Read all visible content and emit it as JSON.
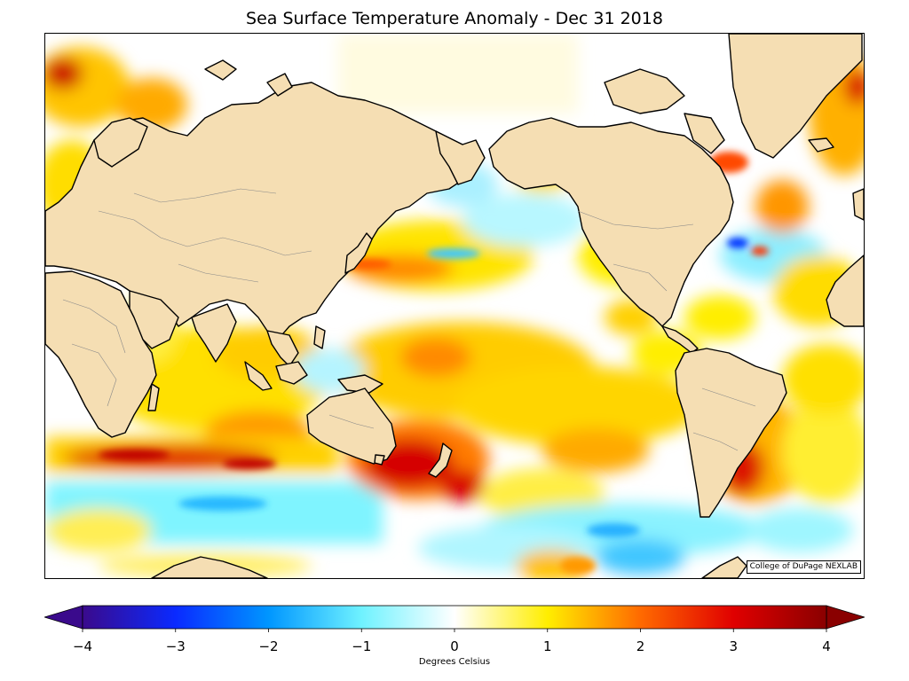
{
  "title": "Sea Surface Temperature Anomaly - Dec 31 2018",
  "credit": "College of DuPage NEXLAB",
  "colorbar": {
    "label": "Degrees Celsius",
    "min": -4,
    "max": 4,
    "ticks": [
      {
        "value": -4,
        "label": "−4"
      },
      {
        "value": -3,
        "label": "−3"
      },
      {
        "value": -2,
        "label": "−2"
      },
      {
        "value": -1,
        "label": "−1"
      },
      {
        "value": 0,
        "label": "0"
      },
      {
        "value": 1,
        "label": "1"
      },
      {
        "value": 2,
        "label": "2"
      },
      {
        "value": 3,
        "label": "3"
      },
      {
        "value": 4,
        "label": "4"
      }
    ],
    "stops": [
      {
        "value": -4,
        "color": "#3a0a8c"
      },
      {
        "value": -3,
        "color": "#0a2aff"
      },
      {
        "value": -2,
        "color": "#0096ff"
      },
      {
        "value": -1,
        "color": "#6ff2ff"
      },
      {
        "value": 0,
        "color": "#ffffff"
      },
      {
        "value": 1,
        "color": "#ffee00"
      },
      {
        "value": 2,
        "color": "#ff6a00"
      },
      {
        "value": 3,
        "color": "#e00000"
      },
      {
        "value": 4,
        "color": "#8a0000"
      }
    ]
  },
  "colors": {
    "land": "#f5deb3",
    "coastline": "#000000",
    "borders": "#888888"
  }
}
